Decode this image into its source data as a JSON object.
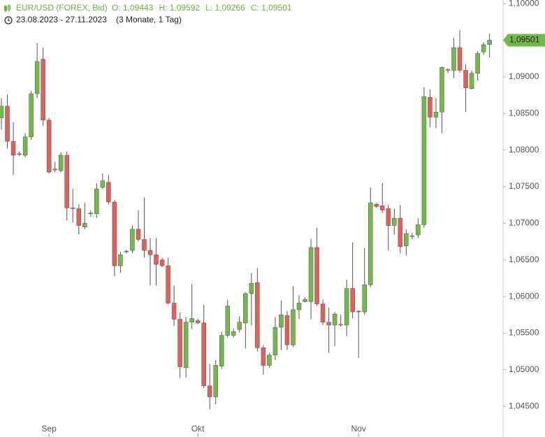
{
  "chart_data": {
    "type": "candlestick",
    "title": "EUR/USD (FOREX, Bid)",
    "header_values": [
      "O: 1,09443",
      "H: 1,09592",
      "L: 1,09266",
      "C: 1,09501"
    ],
    "subtitle": "23.08.2023 - 27.11.2023",
    "period": "(3 Monate, 1 Tag)",
    "up_color": "#72b84a",
    "down_color": "#e0605c",
    "last_label": "1,09501",
    "categories": [
      null,
      null,
      null,
      null,
      null,
      null,
      null,
      null,
      "Sep",
      null,
      null,
      null,
      null,
      null,
      null,
      null,
      null,
      null,
      null,
      null,
      null,
      null,
      null,
      null,
      null,
      null,
      null,
      null,
      null,
      null,
      null,
      null,
      null,
      "Okt",
      null,
      null,
      null,
      null,
      null,
      null,
      null,
      null,
      null,
      null,
      null,
      null,
      null,
      null,
      null,
      null,
      null,
      null,
      null,
      null,
      null,
      null,
      null,
      null,
      null,
      null,
      "Nov",
      null,
      null,
      null,
      null,
      null,
      null,
      null,
      null,
      null,
      null,
      null,
      null,
      null,
      null,
      null,
      null,
      null,
      null,
      null,
      null,
      null,
      null
    ],
    "series": [
      {
        "name": "EUR/USD",
        "open": [
          1.0844,
          1.086,
          1.0812,
          1.0795,
          1.0793,
          1.0818,
          1.0877,
          1.0924,
          1.0841,
          1.0774,
          1.0772,
          1.0793,
          1.0721,
          1.072,
          1.0695,
          1.0713,
          1.0713,
          1.0749,
          1.0756,
          1.0729,
          1.0642,
          1.0661,
          1.0663,
          1.0692,
          1.0678,
          1.0663,
          1.0657,
          1.065,
          1.0642,
          1.0591,
          1.0569,
          1.0503,
          1.0565,
          1.0567,
          1.0564,
          1.0478,
          1.0463,
          1.0505,
          1.0547,
          1.0547,
          1.0555,
          1.0564,
          1.0604,
          1.0619,
          1.053,
          1.0506,
          1.052,
          1.0558,
          1.0574,
          1.0534,
          1.0582,
          1.0593,
          1.0593,
          1.0667,
          1.059,
          1.0565,
          1.0561,
          1.0561,
          1.0561,
          1.0611,
          1.0579,
          1.0579,
          1.0616,
          1.0726,
          1.0724,
          1.072,
          1.0697,
          1.0707,
          1.0669,
          1.0682,
          1.0684,
          1.0698,
          1.0872,
          1.0845,
          1.0852,
          1.0909,
          1.0909,
          1.094,
          1.0909,
          1.0884,
          1.0905,
          1.0934,
          1.09443
        ],
        "high": [
          1.0871,
          1.0876,
          1.0838,
          1.0798,
          1.0823,
          1.0881,
          1.0946,
          1.094,
          1.0844,
          1.0784,
          1.0797,
          1.0798,
          1.0747,
          1.0726,
          1.0728,
          1.0718,
          1.0755,
          1.0768,
          1.0766,
          1.0732,
          1.0661,
          1.0664,
          1.0697,
          1.0718,
          1.0735,
          1.068,
          1.068,
          1.0653,
          1.0653,
          1.0615,
          1.0578,
          1.0572,
          1.0617,
          1.057,
          1.0589,
          1.0508,
          1.0513,
          1.0552,
          1.0596,
          1.0556,
          1.0573,
          1.0606,
          1.0632,
          1.0639,
          1.0534,
          1.0523,
          1.0572,
          1.0594,
          1.058,
          1.0614,
          1.0602,
          1.0599,
          1.0679,
          1.0694,
          1.0596,
          1.0585,
          1.0579,
          1.0575,
          1.0623,
          1.0674,
          1.0581,
          1.0666,
          1.0749,
          1.0728,
          1.0755,
          1.0725,
          1.072,
          1.0725,
          1.0692,
          1.0687,
          1.0707,
          1.0886,
          1.0883,
          1.0871,
          1.0914,
          1.0912,
          1.0953,
          1.0964,
          1.0917,
          1.0909,
          1.0935,
          1.0947,
          1.09592
        ],
        "low": [
          1.0828,
          1.0802,
          1.0766,
          1.0792,
          1.079,
          1.0814,
          1.0871,
          1.0833,
          1.0768,
          1.077,
          1.077,
          1.0704,
          1.0701,
          1.0685,
          1.0692,
          1.0709,
          1.0707,
          1.0747,
          1.0726,
          1.0628,
          1.0632,
          1.0659,
          1.0659,
          1.0675,
          1.0653,
          1.0615,
          1.0615,
          1.064,
          1.0589,
          1.056,
          1.0489,
          1.0489,
          1.0556,
          1.0562,
          1.0475,
          1.0446,
          1.0453,
          1.0501,
          1.0544,
          1.0544,
          1.0551,
          1.0529,
          1.0561,
          1.0525,
          1.0493,
          1.0503,
          1.0513,
          1.0527,
          1.0527,
          1.0531,
          1.0569,
          1.0592,
          1.0569,
          1.0587,
          1.0561,
          1.0523,
          1.0532,
          1.0559,
          1.0546,
          1.057,
          1.0516,
          1.0575,
          1.0613,
          1.0721,
          1.0714,
          1.0663,
          1.0685,
          1.0659,
          1.0656,
          1.0678,
          1.068,
          1.0694,
          1.0831,
          1.083,
          1.0823,
          1.0905,
          1.0898,
          1.0906,
          1.0852,
          1.0883,
          1.0895,
          1.093,
          1.09266
        ],
        "close": [
          1.086,
          1.0812,
          1.0793,
          1.0794,
          1.0818,
          1.0877,
          1.0921,
          1.0841,
          1.077,
          1.0773,
          1.0793,
          1.0721,
          1.072,
          1.0697,
          1.07,
          1.0714,
          1.0747,
          1.0758,
          1.0729,
          1.0642,
          1.0657,
          1.0662,
          1.0692,
          1.0678,
          1.0663,
          1.0657,
          1.0644,
          1.0642,
          1.0591,
          1.0569,
          1.0504,
          1.0565,
          1.057,
          1.0564,
          1.0478,
          1.0463,
          1.0506,
          1.0547,
          1.0587,
          1.0552,
          1.0565,
          1.0604,
          1.0618,
          1.053,
          1.0506,
          1.052,
          1.0558,
          1.0575,
          1.0534,
          1.0582,
          1.0591,
          1.0596,
          1.0667,
          1.059,
          1.0565,
          1.0561,
          1.0576,
          1.0562,
          1.0611,
          1.0579,
          1.058,
          1.0616,
          1.0728,
          1.0723,
          1.0718,
          1.0697,
          1.0707,
          1.0668,
          1.0686,
          1.0683,
          1.0698,
          1.0873,
          1.0845,
          1.0852,
          1.0913,
          1.091,
          1.094,
          1.0909,
          1.0885,
          1.0905,
          1.0932,
          1.0944,
          1.09501
        ]
      }
    ],
    "ylim": [
      1.0432,
      1.1005
    ],
    "yticks": [
      {
        "value": 1.1,
        "label": "1,10000"
      },
      {
        "value": 1.095,
        "label": "1,09500"
      },
      {
        "value": 1.09,
        "label": "1,09000"
      },
      {
        "value": 1.085,
        "label": "1,08500"
      },
      {
        "value": 1.08,
        "label": "1,08000"
      },
      {
        "value": 1.075,
        "label": "1,07500"
      },
      {
        "value": 1.07,
        "label": "1,07000"
      },
      {
        "value": 1.065,
        "label": "1,06500"
      },
      {
        "value": 1.06,
        "label": "1,06000"
      },
      {
        "value": 1.055,
        "label": "1,05500"
      },
      {
        "value": 1.05,
        "label": "1,05000"
      },
      {
        "value": 1.045,
        "label": "1,04500"
      }
    ],
    "grid": false
  }
}
